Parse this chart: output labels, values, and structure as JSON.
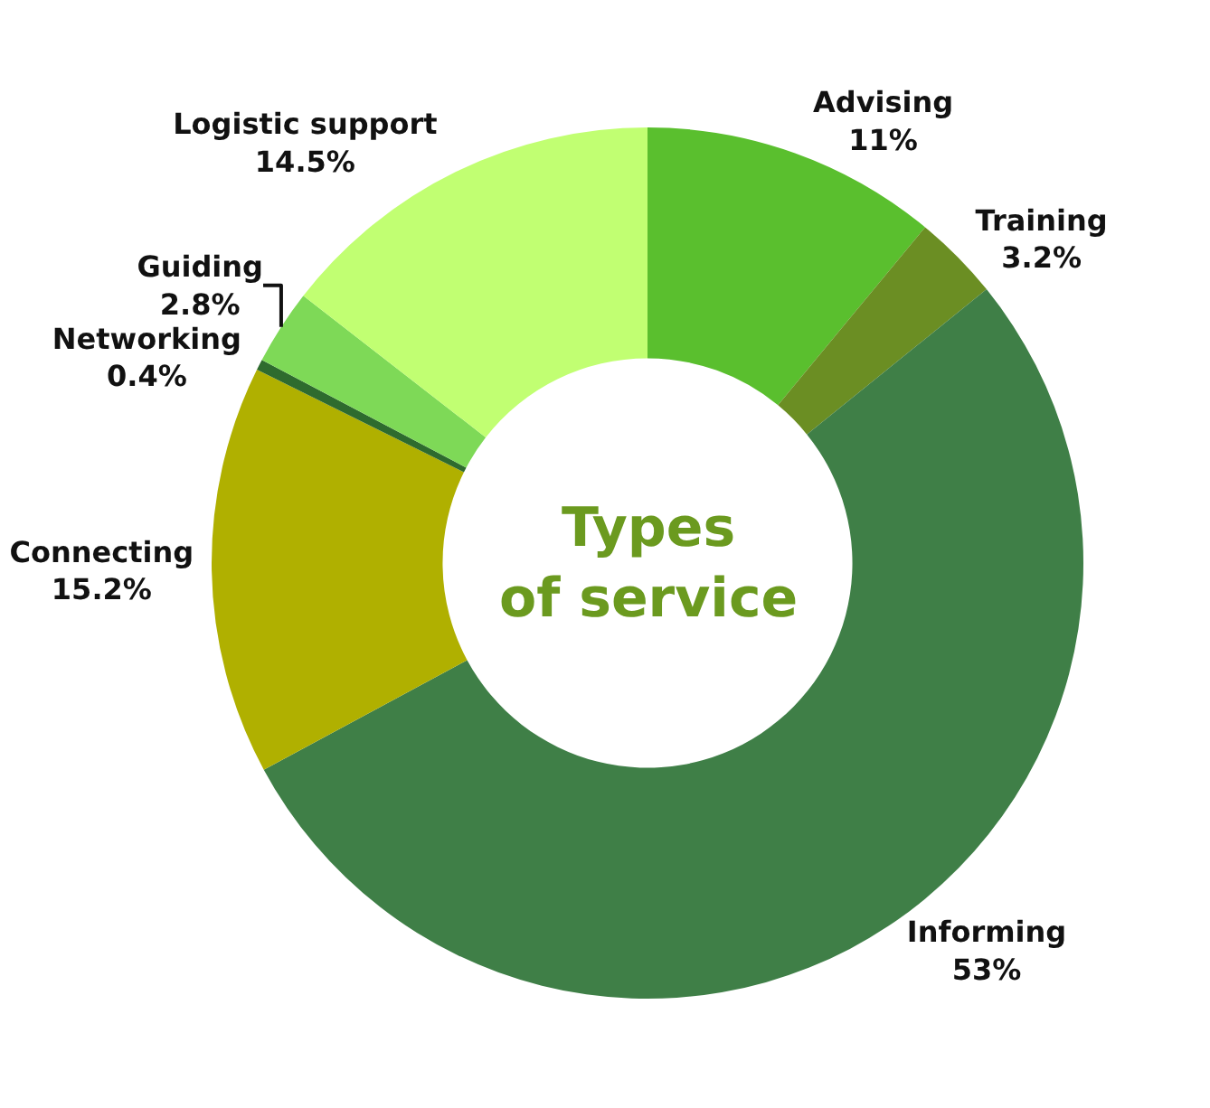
{
  "chart_data": {
    "type": "donut",
    "title": "Types of service",
    "categories": [
      "Advising",
      "Training",
      "Informing",
      "Connecting",
      "Networking",
      "Guiding",
      "Logistic support"
    ],
    "values": [
      11,
      3.2,
      53,
      15.2,
      0.4,
      2.8,
      14.5
    ],
    "value_labels": [
      "11%",
      "3.2%",
      "53%",
      "15.2%",
      "0.4%",
      "2.8%",
      "14.5%"
    ],
    "colors": [
      "#5abf2e",
      "#6b8e23",
      "#3f7f47",
      "#b0b000",
      "#2e6b2e",
      "#7ed957",
      "#c1ff72"
    ],
    "legend": false
  }
}
